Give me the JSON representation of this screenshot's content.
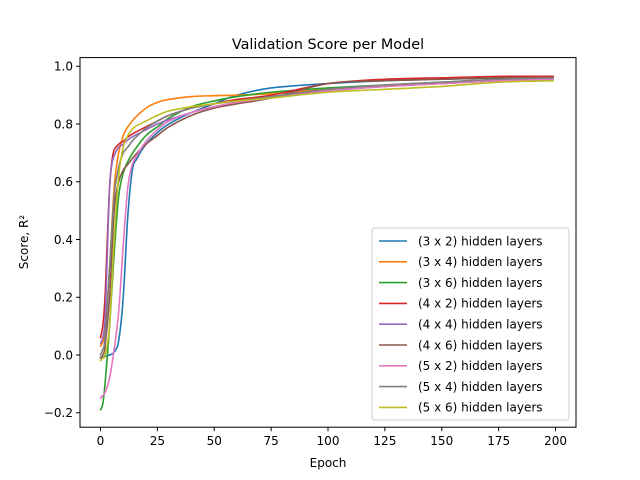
{
  "chart_data": {
    "type": "line",
    "title": "Validation Score per Model",
    "xlabel": "Epoch",
    "ylabel": "Score, R²",
    "xlim": [
      -9,
      209
    ],
    "ylim": [
      -0.25,
      1.03
    ],
    "xticks": [
      0,
      25,
      50,
      75,
      100,
      125,
      150,
      175,
      200
    ],
    "xtick_labels": [
      "0",
      "25",
      "50",
      "75",
      "100",
      "125",
      "150",
      "175",
      "200"
    ],
    "yticks": [
      -0.2,
      0.0,
      0.2,
      0.4,
      0.6,
      0.8,
      1.0
    ],
    "ytick_labels": [
      "−0.2",
      "0.0",
      "0.2",
      "0.4",
      "0.6",
      "0.8",
      "1.0"
    ],
    "grid": false,
    "legend_position": "lower-right",
    "series": [
      {
        "name": "(3 x 2) hidden layers",
        "color": "#1f77b4",
        "x": [
          0,
          2,
          4,
          6,
          8,
          10,
          12,
          14,
          16,
          20,
          25,
          30,
          40,
          50,
          60,
          75,
          100,
          125,
          150,
          175,
          199
        ],
        "y": [
          -0.01,
          -0.005,
          0.0,
          0.01,
          0.05,
          0.2,
          0.48,
          0.64,
          0.68,
          0.73,
          0.77,
          0.8,
          0.84,
          0.87,
          0.9,
          0.925,
          0.94,
          0.95,
          0.955,
          0.96,
          0.965
        ]
      },
      {
        "name": "(3 x 4) hidden layers",
        "color": "#ff7f0e",
        "x": [
          0,
          2,
          4,
          6,
          8,
          10,
          12,
          15,
          20,
          25,
          30,
          40,
          50,
          60,
          75,
          100,
          125,
          150,
          175,
          199
        ],
        "y": [
          0.03,
          0.08,
          0.3,
          0.58,
          0.7,
          0.76,
          0.79,
          0.82,
          0.855,
          0.875,
          0.885,
          0.895,
          0.898,
          0.9,
          0.905,
          0.92,
          0.93,
          0.94,
          0.95,
          0.955
        ]
      },
      {
        "name": "(3 x 6) hidden layers",
        "color": "#2ca02c",
        "x": [
          0,
          1,
          2,
          4,
          6,
          8,
          10,
          12,
          15,
          20,
          25,
          30,
          40,
          50,
          60,
          75,
          100,
          125,
          150,
          175,
          199
        ],
        "y": [
          -0.19,
          -0.17,
          -0.1,
          0.1,
          0.35,
          0.55,
          0.63,
          0.67,
          0.71,
          0.76,
          0.79,
          0.82,
          0.86,
          0.88,
          0.895,
          0.91,
          0.925,
          0.935,
          0.945,
          0.955,
          0.96
        ]
      },
      {
        "name": "(4 x 2) hidden layers",
        "color": "#d62728",
        "x": [
          0,
          1,
          2,
          3,
          4,
          5,
          6,
          8,
          10,
          12,
          15,
          20,
          25,
          30,
          40,
          50,
          60,
          75,
          100,
          125,
          150,
          175,
          199
        ],
        "y": [
          0.06,
          0.1,
          0.2,
          0.4,
          0.58,
          0.67,
          0.71,
          0.73,
          0.74,
          0.755,
          0.77,
          0.79,
          0.81,
          0.83,
          0.855,
          0.87,
          0.885,
          0.9,
          0.94,
          0.955,
          0.96,
          0.965,
          0.965
        ]
      },
      {
        "name": "(4 x 4) hidden layers",
        "color": "#9467bd",
        "x": [
          0,
          1,
          2,
          3,
          4,
          5,
          6,
          8,
          10,
          12,
          15,
          20,
          25,
          30,
          40,
          50,
          60,
          75,
          100,
          125,
          150,
          175,
          199
        ],
        "y": [
          0.04,
          0.06,
          0.12,
          0.35,
          0.58,
          0.66,
          0.69,
          0.72,
          0.73,
          0.745,
          0.76,
          0.78,
          0.8,
          0.815,
          0.84,
          0.86,
          0.875,
          0.89,
          0.915,
          0.93,
          0.94,
          0.95,
          0.955
        ]
      },
      {
        "name": "(4 x 6) hidden layers",
        "color": "#8c564b",
        "x": [
          0,
          1,
          2,
          4,
          6,
          8,
          10,
          12,
          15,
          20,
          25,
          30,
          40,
          50,
          60,
          75,
          100,
          125,
          150,
          175,
          199
        ],
        "y": [
          -0.01,
          0.0,
          0.03,
          0.2,
          0.5,
          0.6,
          0.64,
          0.66,
          0.69,
          0.73,
          0.76,
          0.79,
          0.83,
          0.855,
          0.87,
          0.89,
          0.94,
          0.95,
          0.955,
          0.96,
          0.96
        ]
      },
      {
        "name": "(5 x 2) hidden layers",
        "color": "#e377c2",
        "x": [
          0,
          1,
          2,
          4,
          6,
          8,
          10,
          12,
          14,
          16,
          20,
          25,
          30,
          40,
          50,
          60,
          75,
          100,
          125,
          150,
          175,
          199
        ],
        "y": [
          -0.15,
          -0.14,
          -0.13,
          -0.08,
          0.02,
          0.15,
          0.38,
          0.58,
          0.66,
          0.69,
          0.74,
          0.78,
          0.81,
          0.84,
          0.86,
          0.875,
          0.89,
          0.915,
          0.93,
          0.94,
          0.95,
          0.955
        ]
      },
      {
        "name": "(5 x 4) hidden layers",
        "color": "#7f7f7f",
        "x": [
          0,
          1,
          2,
          4,
          6,
          8,
          10,
          12,
          15,
          20,
          25,
          30,
          40,
          50,
          60,
          75,
          100,
          125,
          150,
          175,
          199
        ],
        "y": [
          0.0,
          0.02,
          0.06,
          0.3,
          0.55,
          0.65,
          0.7,
          0.72,
          0.75,
          0.785,
          0.81,
          0.83,
          0.855,
          0.87,
          0.88,
          0.895,
          0.92,
          0.935,
          0.945,
          0.955,
          0.96
        ]
      },
      {
        "name": "(5 x 6) hidden layers",
        "color": "#bcbd22",
        "x": [
          0,
          1,
          2,
          4,
          6,
          8,
          10,
          12,
          15,
          20,
          25,
          30,
          40,
          50,
          60,
          75,
          100,
          125,
          150,
          175,
          199
        ],
        "y": [
          -0.02,
          -0.01,
          0.0,
          0.1,
          0.4,
          0.62,
          0.72,
          0.76,
          0.79,
          0.81,
          0.83,
          0.845,
          0.86,
          0.87,
          0.88,
          0.89,
          0.91,
          0.92,
          0.93,
          0.945,
          0.95
        ]
      }
    ]
  }
}
